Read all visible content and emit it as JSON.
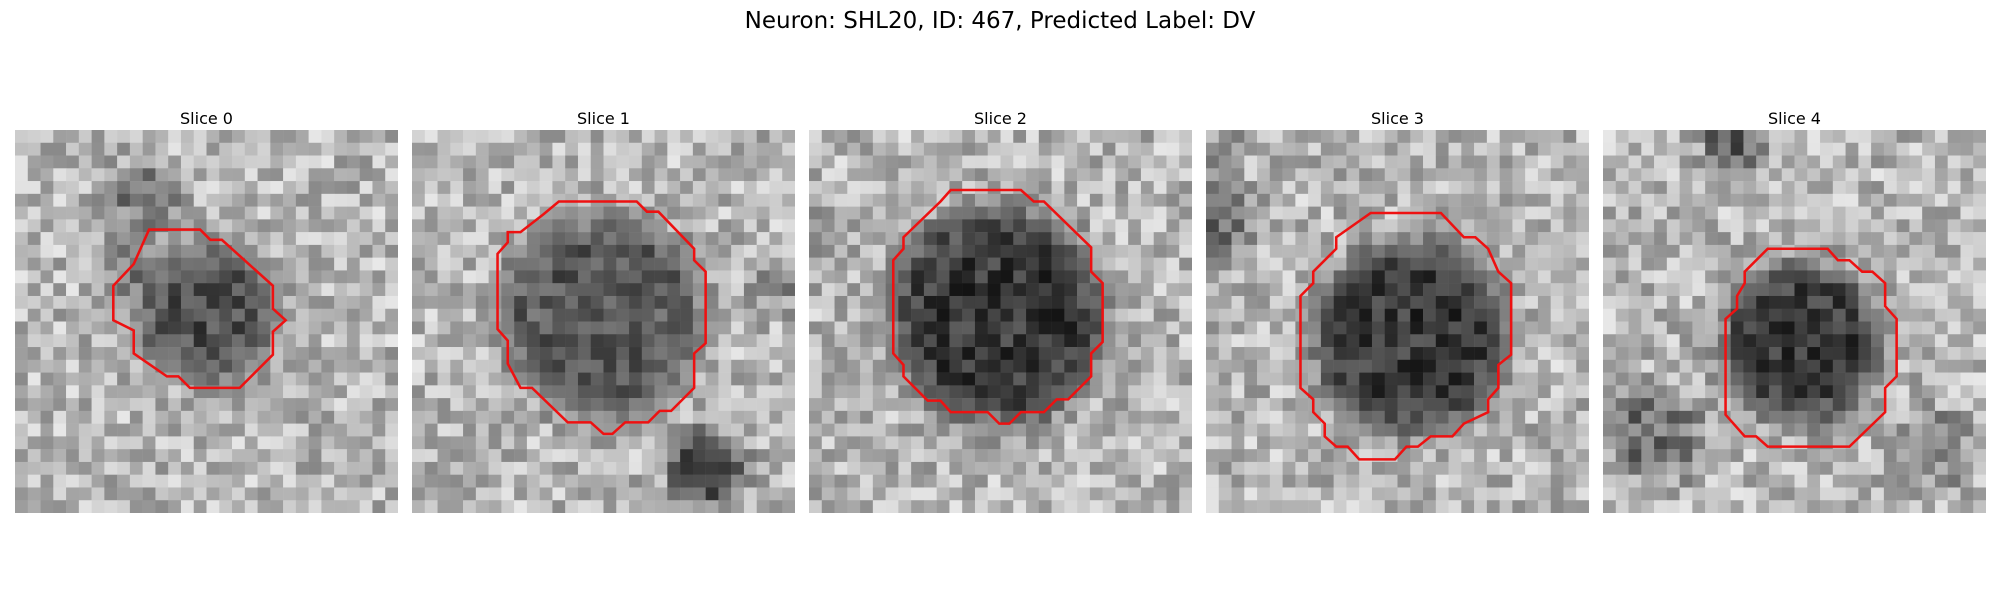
{
  "figure": {
    "title": "Neuron: SHL20, ID: 467, Predicted Label: DV"
  },
  "image": {
    "grid_size": 30,
    "colormap": "gray",
    "contour_color": "#ee1111"
  },
  "panels": [
    {
      "title": "Slice 0",
      "blob": {
        "cx": 15,
        "cy": 14.3,
        "r": 5.2,
        "darkness": 0.42
      },
      "extra_dark": [
        [
          10,
          5,
          2.2,
          0.35
        ],
        [
          9,
          11,
          1.6,
          0.2
        ]
      ],
      "contour": [
        [
          10.5,
          7.8
        ],
        [
          14.5,
          7.8
        ],
        [
          15.3,
          8.6
        ],
        [
          16.2,
          8.6
        ],
        [
          20.2,
          12.2
        ],
        [
          20.2,
          14
        ],
        [
          21.2,
          14.9
        ],
        [
          20.2,
          15.8
        ],
        [
          20.2,
          17.6
        ],
        [
          17.6,
          20.2
        ],
        [
          13.7,
          20.2
        ],
        [
          12.8,
          19.3
        ],
        [
          11.9,
          19.3
        ],
        [
          9.3,
          17.5
        ],
        [
          9.3,
          15.7
        ],
        [
          7.7,
          14.9
        ],
        [
          7.7,
          12.2
        ],
        [
          9.3,
          10.5
        ]
      ]
    },
    {
      "title": "Slice 1",
      "blob": {
        "cx": 14.9,
        "cy": 14.5,
        "r": 7.8,
        "darkness": 0.38
      },
      "extra_dark": [
        [
          23,
          26.5,
          2.5,
          0.55
        ],
        [
          29,
          12,
          1.8,
          0.2
        ]
      ],
      "contour": [
        [
          11.5,
          5.6
        ],
        [
          17.6,
          5.6
        ],
        [
          18.4,
          6.4
        ],
        [
          19.3,
          6.4
        ],
        [
          22.1,
          9.3
        ],
        [
          22.1,
          10.2
        ],
        [
          23,
          11.1
        ],
        [
          23,
          16.7
        ],
        [
          22.1,
          17.5
        ],
        [
          22.1,
          20.2
        ],
        [
          20.3,
          22
        ],
        [
          19.4,
          22
        ],
        [
          18.5,
          22.9
        ],
        [
          16.7,
          22.9
        ],
        [
          15.7,
          23.8
        ],
        [
          15.0,
          23.8
        ],
        [
          14.0,
          22.9
        ],
        [
          12.2,
          22.9
        ],
        [
          9.4,
          20.2
        ],
        [
          8.5,
          20.2
        ],
        [
          7.5,
          18.3
        ],
        [
          7.5,
          16.5
        ],
        [
          6.7,
          15.6
        ],
        [
          6.7,
          9.7
        ],
        [
          7.5,
          8.8
        ],
        [
          7.5,
          8.0
        ],
        [
          8.5,
          8.0
        ],
        [
          10.3,
          6.6
        ]
      ]
    },
    {
      "title": "Slice 2",
      "blob": {
        "cx": 14.8,
        "cy": 14.6,
        "r": 8.4,
        "darkness": 0.5
      },
      "extra_dark": [
        [
          1,
          8,
          2.0,
          0.2
        ]
      ],
      "contour": [
        [
          10.3,
          5.6
        ],
        [
          11.1,
          4.7
        ],
        [
          16.6,
          4.7
        ],
        [
          17.6,
          5.6
        ],
        [
          18.4,
          5.6
        ],
        [
          22.1,
          9.2
        ],
        [
          22.1,
          11.1
        ],
        [
          23.0,
          12.0
        ],
        [
          23.0,
          16.6
        ],
        [
          22.1,
          17.5
        ],
        [
          22.1,
          19.3
        ],
        [
          20.3,
          21.1
        ],
        [
          19.4,
          21.1
        ],
        [
          18.4,
          22.1
        ],
        [
          16.6,
          22.1
        ],
        [
          15.7,
          23.0
        ],
        [
          14.9,
          23.0
        ],
        [
          14.0,
          22.1
        ],
        [
          11.1,
          22.1
        ],
        [
          10.3,
          21.2
        ],
        [
          9.3,
          21.2
        ],
        [
          7.4,
          19.3
        ],
        [
          7.4,
          18.4
        ],
        [
          6.6,
          17.5
        ],
        [
          6.6,
          10.2
        ],
        [
          7.4,
          9.3
        ],
        [
          7.4,
          8.4
        ]
      ]
    },
    {
      "title": "Slice 3",
      "blob": {
        "cx": 16,
        "cy": 16.4,
        "r": 7.5,
        "darkness": 0.5
      },
      "extra_dark": [
        [
          1,
          7,
          2.5,
          0.35
        ],
        [
          1,
          1,
          1.5,
          0.15
        ]
      ],
      "contour": [
        [
          12.9,
          6.5
        ],
        [
          18.4,
          6.5
        ],
        [
          20.2,
          8.4
        ],
        [
          21.1,
          8.4
        ],
        [
          22.1,
          9.3
        ],
        [
          22.9,
          11.1
        ],
        [
          23.9,
          12.0
        ],
        [
          23.9,
          17.6
        ],
        [
          22.9,
          18.4
        ],
        [
          22.9,
          20.2
        ],
        [
          22.1,
          21.1
        ],
        [
          22.1,
          22.1
        ],
        [
          20.2,
          23.0
        ],
        [
          19.3,
          24.0
        ],
        [
          17.6,
          24.0
        ],
        [
          16.6,
          24.8
        ],
        [
          15.7,
          24.8
        ],
        [
          14.8,
          25.8
        ],
        [
          12.0,
          25.8
        ],
        [
          11.1,
          24.8
        ],
        [
          10.2,
          24.8
        ],
        [
          9.3,
          24.0
        ],
        [
          9.3,
          23.0
        ],
        [
          8.4,
          22.1
        ],
        [
          8.4,
          21.1
        ],
        [
          7.4,
          20.2
        ],
        [
          7.4,
          13.0
        ],
        [
          8.4,
          12.0
        ],
        [
          8.4,
          11.1
        ],
        [
          10.2,
          9.3
        ],
        [
          10.2,
          8.4
        ]
      ]
    },
    {
      "title": "Slice 4",
      "blob": {
        "cx": 15.5,
        "cy": 16.7,
        "r": 6.2,
        "darkness": 0.5
      },
      "extra_dark": [
        [
          10,
          1,
          1.8,
          0.45
        ],
        [
          4,
          24,
          3.5,
          0.3
        ],
        [
          26,
          25,
          3.0,
          0.2
        ]
      ],
      "contour": [
        [
          12.9,
          9.3
        ],
        [
          17.6,
          9.3
        ],
        [
          18.4,
          10.2
        ],
        [
          19.3,
          10.2
        ],
        [
          20.3,
          11.1
        ],
        [
          21.1,
          11.1
        ],
        [
          22.1,
          12.0
        ],
        [
          22.1,
          13.8
        ],
        [
          23.0,
          14.8
        ],
        [
          23.0,
          19.3
        ],
        [
          22.1,
          20.2
        ],
        [
          22.1,
          22.1
        ],
        [
          19.3,
          24.8
        ],
        [
          12.9,
          24.8
        ],
        [
          12.0,
          24.0
        ],
        [
          11.1,
          24.0
        ],
        [
          9.6,
          22.3
        ],
        [
          9.6,
          14.8
        ],
        [
          10.5,
          14.0
        ],
        [
          10.5,
          13.0
        ],
        [
          11.1,
          12.0
        ],
        [
          11.1,
          11.1
        ]
      ]
    }
  ]
}
